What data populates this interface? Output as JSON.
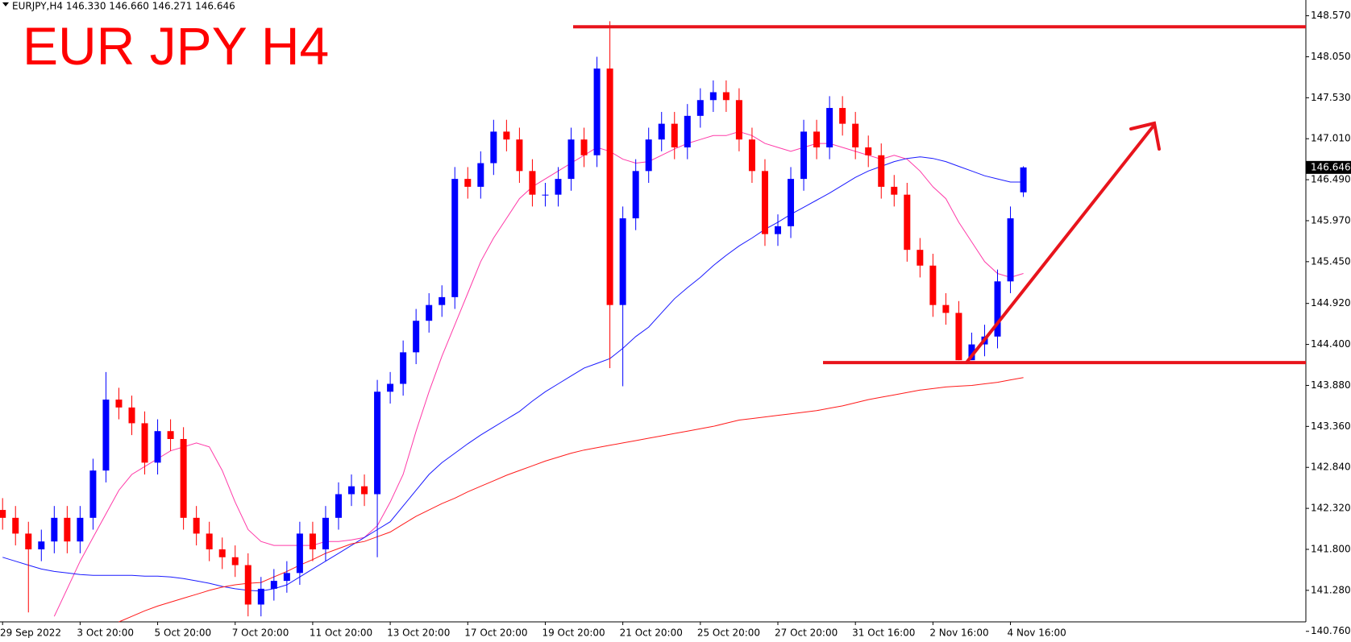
{
  "header": "EURJPY,H4  146.330 146.660 146.271 146.646",
  "chart_data": {
    "type": "candlestick",
    "title": "EUR JPY H4",
    "categories": [
      "29 Sep 2022",
      null,
      null,
      null,
      null,
      null,
      "3 Oct 20:00",
      null,
      null,
      null,
      null,
      null,
      "5 Oct 20:00",
      null,
      null,
      null,
      null,
      null,
      "7 Oct 20:00",
      null,
      null,
      null,
      null,
      null,
      "11 Oct 20:00",
      null,
      null,
      null,
      null,
      null,
      "13 Oct 20:00",
      null,
      null,
      null,
      null,
      null,
      "17 Oct 20:00",
      null,
      null,
      null,
      null,
      null,
      "19 Oct 20:00",
      null,
      null,
      null,
      null,
      null,
      "21 Oct 20:00",
      null,
      null,
      null,
      null,
      null,
      "25 Oct 20:00",
      null,
      null,
      null,
      null,
      null,
      "27 Oct 20:00",
      null,
      null,
      null,
      null,
      null,
      "31 Oct 16:00",
      null,
      null,
      null,
      null,
      null,
      "2 Nov 16:00",
      null,
      null,
      null,
      null,
      null,
      "4 Nov 16:00",
      null
    ],
    "ohlc": {
      "open": [
        142.3,
        142.2,
        142.0,
        141.8,
        141.9,
        142.2,
        141.9,
        142.2,
        142.8,
        143.7,
        143.6,
        143.4,
        142.9,
        143.3,
        143.2,
        142.2,
        142.0,
        141.8,
        141.7,
        141.6,
        141.1,
        141.3,
        141.4,
        141.5,
        142.0,
        141.8,
        142.2,
        142.5,
        142.6,
        142.5,
        143.8,
        143.9,
        144.3,
        144.7,
        144.9,
        145.0,
        146.5,
        146.4,
        146.7,
        147.1,
        147.0,
        146.6,
        146.3,
        146.3,
        146.5,
        147.0,
        146.8,
        147.9,
        144.9,
        146.0,
        146.6,
        147.0,
        147.2,
        146.9,
        147.3,
        147.5,
        147.6,
        147.5,
        147.0,
        146.6,
        145.8,
        145.9,
        146.5,
        147.1,
        146.9,
        147.4,
        147.2,
        146.9,
        146.8,
        146.4,
        146.3,
        145.6,
        145.4,
        144.9,
        144.8,
        144.2,
        144.4,
        144.5,
        145.2,
        146.33
      ],
      "high": [
        142.45,
        142.35,
        142.15,
        142.05,
        142.35,
        142.35,
        142.35,
        142.95,
        144.05,
        143.85,
        143.75,
        143.55,
        143.45,
        143.45,
        143.35,
        142.35,
        142.15,
        141.95,
        141.85,
        141.75,
        141.45,
        141.55,
        141.65,
        142.15,
        142.15,
        142.35,
        142.65,
        142.75,
        142.75,
        143.95,
        144.05,
        144.45,
        144.85,
        145.05,
        145.15,
        146.65,
        146.65,
        146.85,
        147.25,
        147.25,
        147.15,
        146.75,
        146.45,
        146.65,
        147.15,
        147.15,
        148.05,
        148.5,
        146.15,
        146.75,
        147.15,
        147.35,
        147.35,
        147.45,
        147.65,
        147.75,
        147.75,
        147.65,
        147.15,
        146.75,
        146.05,
        146.65,
        147.25,
        147.25,
        147.55,
        147.55,
        147.35,
        147.05,
        146.95,
        146.55,
        146.45,
        145.75,
        145.55,
        145.05,
        144.95,
        144.55,
        144.65,
        145.35,
        146.15,
        146.66
      ],
      "low": [
        142.05,
        141.85,
        141.0,
        141.65,
        141.75,
        141.75,
        141.75,
        142.05,
        142.65,
        143.45,
        143.25,
        142.75,
        142.75,
        143.05,
        142.05,
        141.85,
        141.65,
        141.55,
        141.45,
        140.95,
        140.95,
        141.15,
        141.25,
        141.35,
        141.65,
        141.65,
        142.05,
        142.35,
        142.35,
        141.7,
        143.65,
        143.75,
        144.15,
        144.55,
        144.75,
        144.85,
        146.25,
        146.25,
        146.55,
        146.85,
        146.45,
        146.15,
        146.15,
        146.15,
        146.35,
        146.65,
        146.65,
        144.1,
        143.87,
        145.85,
        146.45,
        146.85,
        146.75,
        146.75,
        147.15,
        147.35,
        147.35,
        146.85,
        146.45,
        145.65,
        145.65,
        145.75,
        146.35,
        146.75,
        146.75,
        147.05,
        146.75,
        146.65,
        146.25,
        146.15,
        145.45,
        145.25,
        144.75,
        144.65,
        144.2,
        144.2,
        144.25,
        144.35,
        145.05,
        146.271
      ],
      "close": [
        142.2,
        142.0,
        141.8,
        141.9,
        142.2,
        141.9,
        142.2,
        142.8,
        143.7,
        143.6,
        143.4,
        142.9,
        143.3,
        143.2,
        142.2,
        142.0,
        141.8,
        141.7,
        141.6,
        141.1,
        141.3,
        141.4,
        141.5,
        142.0,
        141.8,
        142.2,
        142.5,
        142.6,
        142.5,
        143.8,
        143.9,
        144.3,
        144.7,
        144.9,
        145.0,
        146.5,
        146.4,
        146.7,
        147.1,
        147.0,
        146.6,
        146.3,
        146.3,
        146.5,
        147.0,
        146.8,
        147.9,
        144.9,
        146.0,
        146.6,
        147.0,
        147.2,
        146.9,
        147.3,
        147.5,
        147.6,
        147.5,
        147.0,
        146.6,
        145.8,
        145.9,
        146.5,
        147.1,
        146.9,
        147.4,
        147.2,
        146.9,
        146.8,
        146.4,
        146.3,
        145.6,
        145.4,
        144.9,
        144.8,
        144.2,
        144.4,
        144.5,
        145.2,
        146.0,
        146.646
      ]
    },
    "up_color": "#0000ff",
    "down_color": "#ff0000",
    "lines": [
      {
        "color": "#ff3aa8",
        "values": [
          null,
          null,
          null,
          null,
          140.95,
          141.3,
          141.65,
          141.95,
          142.25,
          142.55,
          142.75,
          142.85,
          142.95,
          143.05,
          143.1,
          143.15,
          143.1,
          142.8,
          142.4,
          142.05,
          141.9,
          141.85,
          141.85,
          141.85,
          141.85,
          141.9,
          141.9,
          141.92,
          141.95,
          142.1,
          142.4,
          142.75,
          143.3,
          143.8,
          144.25,
          144.65,
          145.05,
          145.45,
          145.75,
          146.0,
          146.25,
          146.4,
          146.5,
          146.6,
          146.7,
          146.8,
          146.9,
          146.85,
          146.75,
          146.7,
          146.72,
          146.8,
          146.88,
          146.95,
          147.0,
          147.05,
          147.05,
          147.1,
          147.05,
          146.95,
          146.9,
          146.85,
          146.9,
          146.95,
          146.95,
          146.9,
          146.85,
          146.8,
          146.75,
          146.8,
          146.75,
          146.6,
          146.4,
          146.25,
          145.95,
          145.7,
          145.45,
          145.3,
          145.25,
          145.3
        ]
      },
      {
        "color": "#1a1aff",
        "values": [
          141.7,
          141.65,
          141.6,
          141.55,
          141.52,
          141.5,
          141.48,
          141.47,
          141.47,
          141.47,
          141.47,
          141.46,
          141.46,
          141.45,
          141.43,
          141.4,
          141.37,
          141.33,
          141.3,
          141.28,
          141.27,
          141.3,
          141.35,
          141.45,
          141.55,
          141.65,
          141.75,
          141.85,
          141.95,
          142.05,
          142.15,
          142.35,
          142.55,
          142.75,
          142.9,
          143.02,
          143.14,
          143.25,
          143.35,
          143.45,
          143.55,
          143.68,
          143.8,
          143.9,
          144.0,
          144.1,
          144.16,
          144.22,
          144.35,
          144.5,
          144.62,
          144.8,
          144.98,
          145.12,
          145.25,
          145.4,
          145.53,
          145.65,
          145.75,
          145.86,
          145.95,
          146.05,
          146.14,
          146.23,
          146.32,
          146.42,
          146.52,
          146.6,
          146.66,
          146.72,
          146.76,
          146.78,
          146.76,
          146.72,
          146.66,
          146.6,
          146.54,
          146.5,
          146.46,
          146.46
        ]
      },
      {
        "color": "#ff1a1a",
        "values": [
          null,
          null,
          null,
          null,
          null,
          null,
          null,
          null,
          null,
          140.88,
          140.95,
          141.02,
          141.08,
          141.13,
          141.18,
          141.23,
          141.28,
          141.32,
          141.35,
          141.37,
          141.38,
          141.45,
          141.52,
          141.6,
          141.67,
          141.75,
          141.81,
          141.87,
          141.9,
          141.96,
          142.02,
          142.12,
          142.22,
          142.3,
          142.38,
          142.45,
          142.53,
          142.6,
          142.67,
          142.74,
          142.8,
          142.86,
          142.92,
          142.97,
          143.02,
          143.06,
          143.09,
          143.12,
          143.15,
          143.18,
          143.21,
          143.24,
          143.27,
          143.3,
          143.33,
          143.36,
          143.4,
          143.44,
          143.46,
          143.48,
          143.5,
          143.52,
          143.54,
          143.56,
          143.59,
          143.62,
          143.66,
          143.7,
          143.73,
          143.76,
          143.79,
          143.82,
          143.84,
          143.86,
          143.87,
          143.88,
          143.9,
          143.92,
          143.95,
          143.98
        ]
      }
    ],
    "hlines": [
      148.43,
      144.17
    ],
    "hline_color": "#e8141c",
    "last_price": 146.646,
    "ylim": [
      140.88,
      148.77
    ],
    "yticks": [
      {
        "value": 148.57,
        "label": "148.570"
      },
      {
        "value": 148.05,
        "label": "148.050"
      },
      {
        "value": 147.53,
        "label": "147.530"
      },
      {
        "value": 147.01,
        "label": "147.010"
      },
      {
        "value": 146.49,
        "label": "146.490"
      },
      {
        "value": 145.97,
        "label": "145.970"
      },
      {
        "value": 145.45,
        "label": "145.450"
      },
      {
        "value": 144.92,
        "label": "144.920"
      },
      {
        "value": 144.4,
        "label": "144.400"
      },
      {
        "value": 143.88,
        "label": "143.880"
      },
      {
        "value": 143.36,
        "label": "143.360"
      },
      {
        "value": 142.84,
        "label": "142.840"
      },
      {
        "value": 142.32,
        "label": "142.320"
      },
      {
        "value": 141.8,
        "label": "141.800"
      },
      {
        "value": 141.28,
        "label": "141.280"
      },
      {
        "value": 140.76,
        "label": "140.760"
      }
    ],
    "grid": false
  }
}
